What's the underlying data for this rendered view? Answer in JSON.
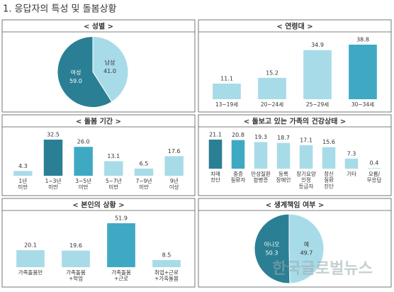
{
  "title": "1. 응답자의 특성 및 돌봄상황",
  "watermark": "한국글로벌뉴스",
  "chart_data": [
    {
      "type": "pie",
      "title": "< 성별 >",
      "categories": [
        "남성",
        "여성"
      ],
      "values": [
        41,
        59
      ],
      "value_labels": [
        "41.0",
        "59.0"
      ],
      "colors": [
        "#a8dbe8",
        "#2b7f94"
      ]
    },
    {
      "type": "bar",
      "title": "< 연령대 >",
      "categories": [
        "13~19세",
        "20~24세",
        "25~29세",
        "30~34세"
      ],
      "values": [
        11.1,
        15.2,
        34.9,
        38.8
      ],
      "colors": [
        "#a8dbe8",
        "#a8dbe8",
        "#a8dbe8",
        "#3fa9c4"
      ]
    },
    {
      "type": "bar",
      "title": "< 돌봄 기간 >",
      "categories": [
        "1년\n미만",
        "1~3년\n미만",
        "3~5년\n미만",
        "5~7년\n미만",
        "7~9년\n미만",
        "9년\n이상"
      ],
      "values": [
        4.3,
        32.5,
        26,
        13.1,
        6.5,
        17.6
      ],
      "value_labels": [
        "4.3",
        "32.5",
        "26.0",
        "13.1",
        "6.5",
        "17.6"
      ],
      "colors": [
        "#a8dbe8",
        "#2b7f94",
        "#3fa9c4",
        "#a8dbe8",
        "#a8dbe8",
        "#a8dbe8"
      ]
    },
    {
      "type": "bar",
      "title": "< 돌보고 있는 가족의 건강상태 >",
      "categories": [
        "치매\n진단",
        "중증\n질환자",
        "만성질환\n합병증",
        "등록\n장애인",
        "장기요양\n인정\n등급자",
        "정신\n질환\n진단",
        "기타",
        "모름/\n무응답"
      ],
      "values": [
        21.1,
        20.8,
        19.3,
        18.7,
        17.1,
        15.6,
        7.3,
        0.4
      ],
      "colors": [
        "#2b7f94",
        "#3fa9c4",
        "#a8dbe8",
        "#a8dbe8",
        "#a8dbe8",
        "#a8dbe8",
        "#a8dbe8",
        "#a8dbe8"
      ]
    },
    {
      "type": "bar",
      "title": "< 본인의 상황 >",
      "categories": [
        "가족돌봄만",
        "가족돌봄\n+학업",
        "가족돌봄\n+근로",
        "취업+근로\n+가족돌봄"
      ],
      "values": [
        20.1,
        19.6,
        51.9,
        8.5
      ],
      "colors": [
        "#a8dbe8",
        "#a8dbe8",
        "#3fa9c4",
        "#a8dbe8"
      ]
    },
    {
      "type": "pie",
      "title": "< 생계책임 여부 >",
      "categories": [
        "예",
        "아니오"
      ],
      "values": [
        49.7,
        50.3
      ],
      "colors": [
        "#a8dbe8",
        "#2b7f94"
      ]
    }
  ]
}
